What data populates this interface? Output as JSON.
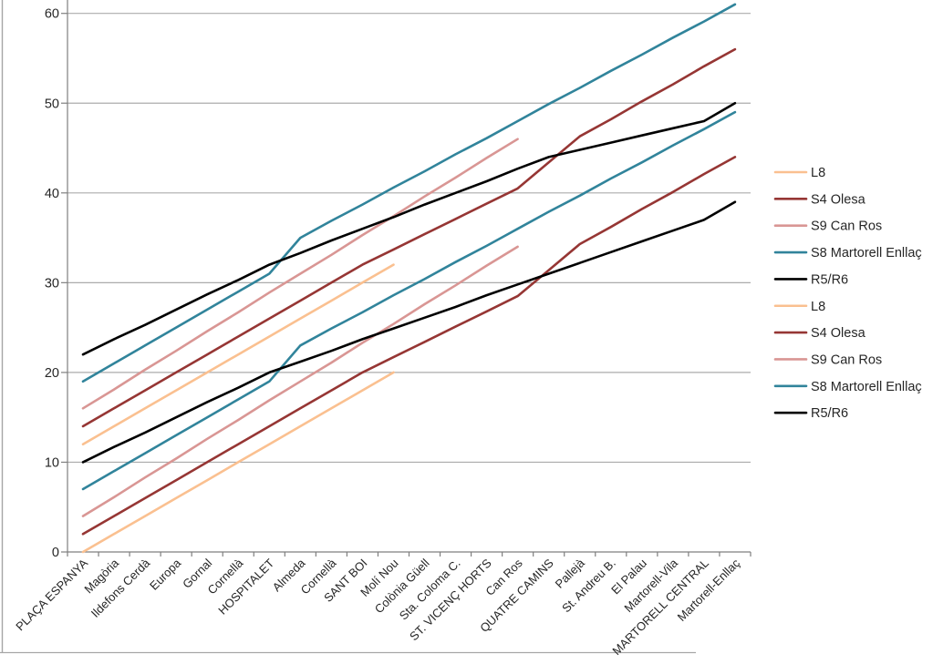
{
  "chart_data": {
    "type": "line",
    "title": "",
    "xlabel": "",
    "ylabel": "",
    "grid": true,
    "legend_position": "right",
    "categories": [
      "PLAÇA ESPANYA",
      "Magòria",
      "Ildefons Cerdà",
      "Europa",
      "Gornal",
      "Cornellà",
      "HOSPITALET",
      "Almeda",
      "Cornellà",
      "SANT BOI",
      "Molí Nou",
      "Colònia Güell",
      "Sta. Coloma C.",
      "ST. VICENÇ HORTS",
      "Can Ros",
      "QUATRE CAMINS",
      "Pallejà",
      "St. Andreu B.",
      "El Palau",
      "Martorell-Vila",
      "MARTORELL CENTRAL",
      "Martorell-Enllaç"
    ],
    "y_axis": {
      "min": 0,
      "max": 60,
      "step": 10,
      "tick_labels": [
        "0",
        "10",
        "20",
        "30",
        "40",
        "50",
        "60"
      ]
    },
    "legend": [
      "L8",
      "S4 Olesa",
      "S9 Can Ros",
      "S8 Martorell Enllaç",
      "R5/R6",
      "L8",
      "S4 Olesa",
      "S9 Can Ros",
      "S8 Martorell Enllaç",
      "R5/R6"
    ],
    "series": [
      {
        "name": "L8",
        "color": "#FAC090",
        "values": [
          12,
          14,
          16,
          18,
          20,
          22,
          24,
          26,
          28,
          30,
          32,
          null,
          null,
          null,
          null,
          null,
          null,
          null,
          null,
          null,
          null,
          null
        ]
      },
      {
        "name": "S4 Olesa",
        "color": "#963634",
        "values": [
          14,
          16,
          18,
          20,
          22,
          24,
          26,
          28,
          30,
          32,
          33.7,
          35.4,
          37.1,
          38.8,
          40.5,
          43.4,
          46.3,
          48.2,
          50.2,
          52.1,
          54.1,
          56
        ]
      },
      {
        "name": "S9 Can Ros",
        "color": "#D99694",
        "values": [
          16,
          18.1,
          20.3,
          22.4,
          24.6,
          26.7,
          28.9,
          31,
          33.1,
          35.3,
          37.4,
          39.6,
          41.7,
          43.9,
          46,
          null,
          null,
          null,
          null,
          null,
          null,
          null
        ]
      },
      {
        "name": "S8 Martorell Enllaç",
        "color": "#31849B",
        "values": [
          19,
          21,
          23,
          25,
          27,
          29,
          31,
          35,
          36.9,
          38.7,
          40.6,
          42.4,
          44.3,
          46.1,
          48,
          49.9,
          51.7,
          53.6,
          55.4,
          57.3,
          59.1,
          61
        ]
      },
      {
        "name": "R5/R6",
        "color": "#000000",
        "values": [
          22,
          23.7,
          25.3,
          27,
          28.7,
          30.3,
          32,
          33.3,
          34.7,
          36,
          37.3,
          38.7,
          40,
          41.3,
          42.7,
          44,
          44.8,
          45.6,
          46.4,
          47.2,
          48,
          50
        ]
      },
      {
        "name": "L8",
        "color": "#FAC090",
        "values": [
          0,
          2,
          4,
          6,
          8,
          10,
          12,
          14,
          16,
          18,
          20,
          null,
          null,
          null,
          null,
          null,
          null,
          null,
          null,
          null,
          null,
          null
        ]
      },
      {
        "name": "S4 Olesa",
        "color": "#963634",
        "values": [
          2,
          4,
          6,
          8,
          10,
          12,
          14,
          16,
          18,
          20,
          21.7,
          23.4,
          25.1,
          26.8,
          28.5,
          31.4,
          34.3,
          36.2,
          38.2,
          40.1,
          42.1,
          44
        ]
      },
      {
        "name": "S9 Can Ros",
        "color": "#D99694",
        "values": [
          4,
          6.1,
          8.3,
          10.4,
          12.6,
          14.7,
          16.9,
          19,
          21.1,
          23.3,
          25.4,
          27.6,
          29.7,
          31.9,
          34,
          null,
          null,
          null,
          null,
          null,
          null,
          null
        ]
      },
      {
        "name": "S8 Martorell Enllaç",
        "color": "#31849B",
        "values": [
          7,
          9,
          11,
          13,
          15,
          17,
          19,
          23,
          24.9,
          26.7,
          28.6,
          30.4,
          32.3,
          34.1,
          36,
          37.9,
          39.7,
          41.6,
          43.4,
          45.3,
          47.1,
          49
        ]
      },
      {
        "name": "R5/R6",
        "color": "#000000",
        "values": [
          10,
          11.7,
          13.3,
          15,
          16.7,
          18.3,
          20,
          21.2,
          22.4,
          23.7,
          24.9,
          26.1,
          27.3,
          28.6,
          29.8,
          31,
          32.2,
          33.4,
          34.6,
          35.8,
          37,
          39
        ]
      }
    ]
  },
  "colors": {
    "background": "#ffffff",
    "gridline": "#ABABAB",
    "axis": "#7F7F7F",
    "text": "#262626",
    "window_border": "#A6A6A6"
  }
}
